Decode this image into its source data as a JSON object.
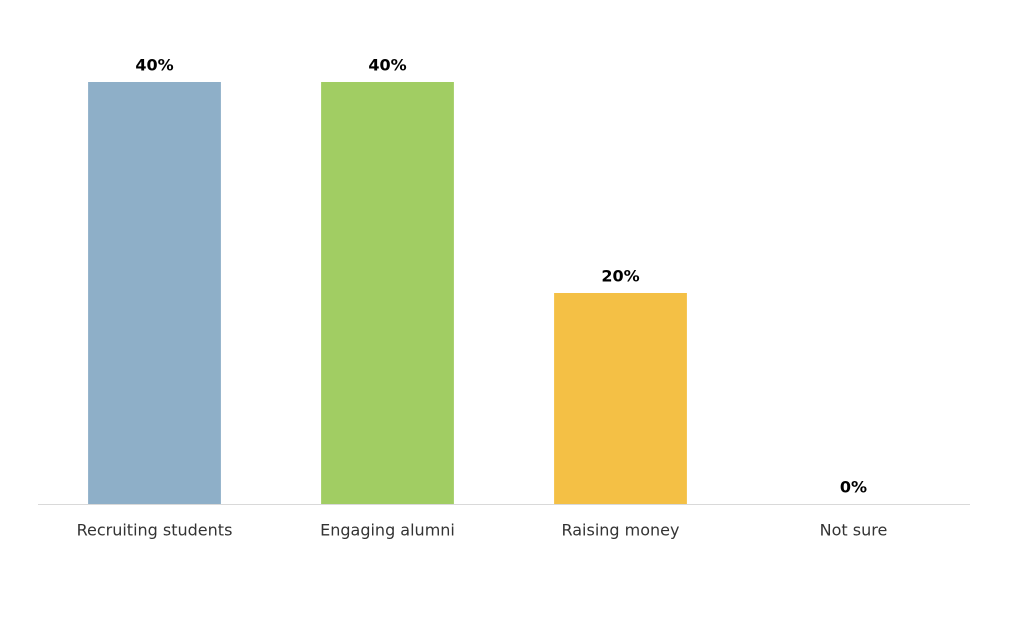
{
  "chart_data": {
    "type": "bar",
    "categories": [
      "Recruiting students",
      "Engaging alumni",
      "Raising money",
      "Not sure"
    ],
    "values": [
      40,
      40,
      20,
      0
    ],
    "value_labels": [
      "40%",
      "40%",
      "20%",
      "0%"
    ],
    "colors": [
      "#8eafc8",
      "#a1cd63",
      "#f4c045",
      "#8eafc8"
    ]
  }
}
